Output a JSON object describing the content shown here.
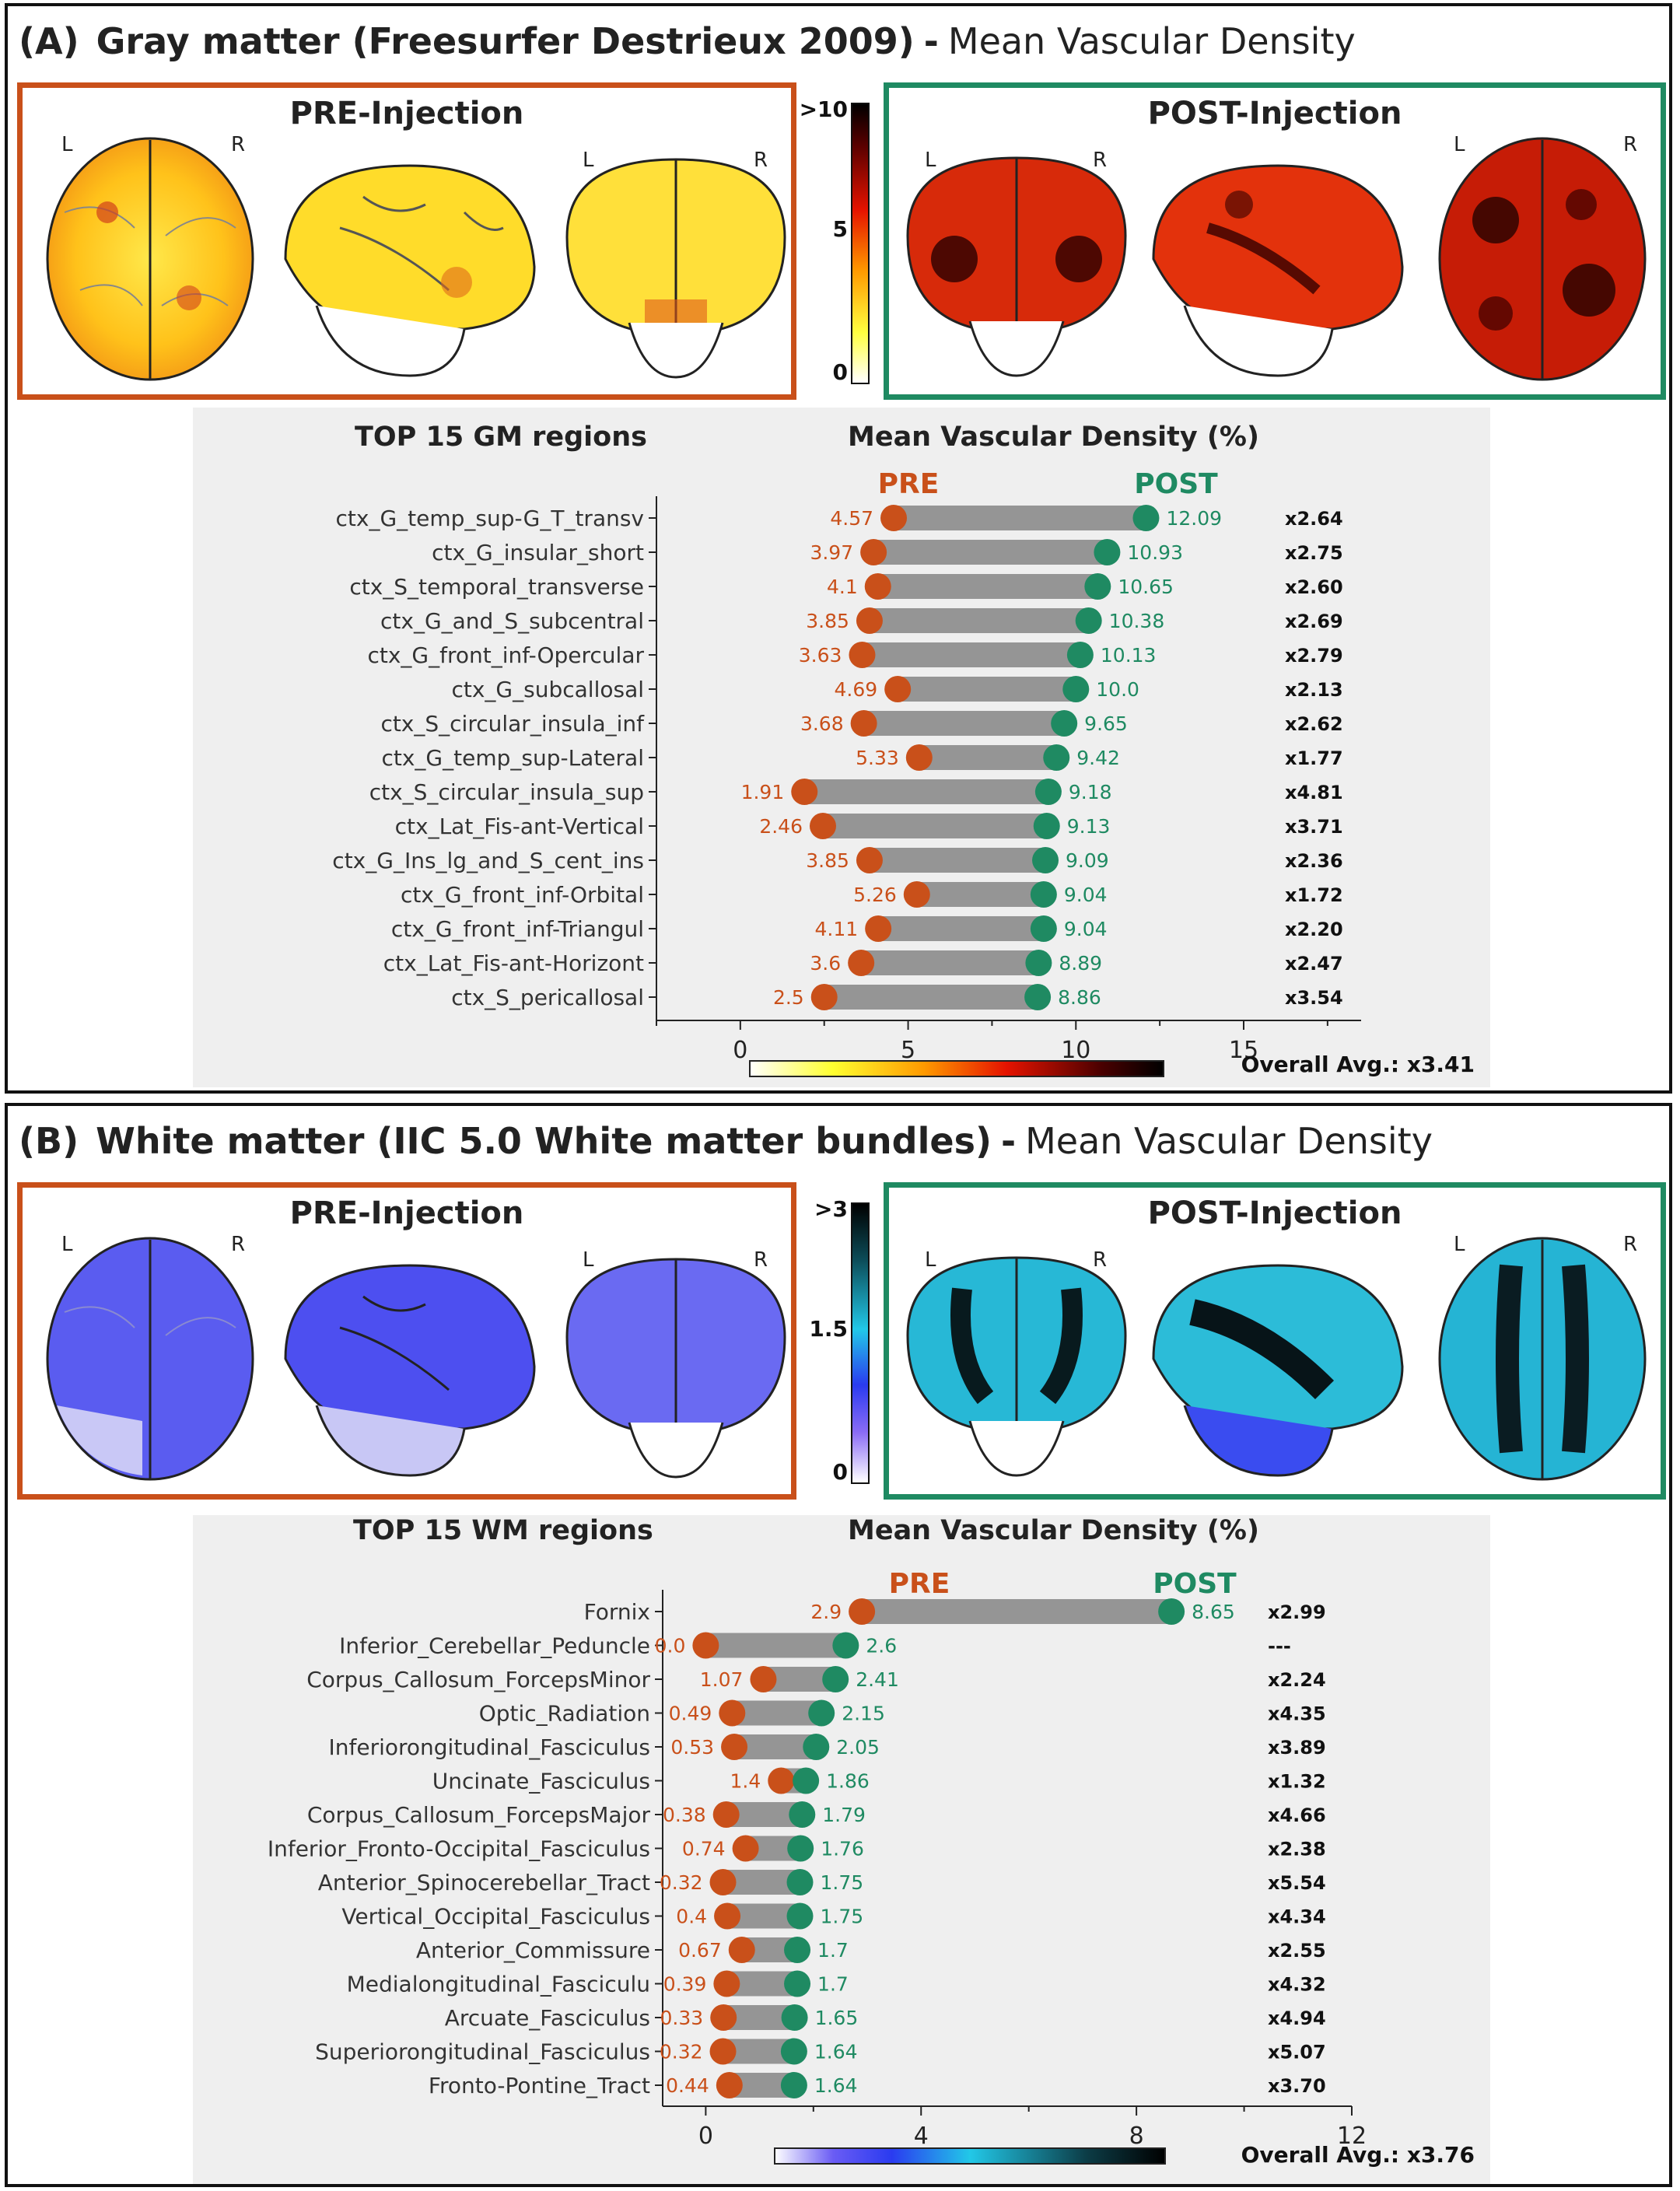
{
  "colors": {
    "pre": "#c9501a",
    "post": "#1f8a62",
    "bar": "#959595",
    "frame": "#c9501a"
  },
  "panelA": {
    "tag": "(A)",
    "title_bold": "Gray matter (Freesurfer Destrieux 2009)",
    "dash": "-",
    "title_rest": "Mean Vascular Density",
    "pre_label": "PRE-Injection",
    "post_label": "POST-Injection",
    "hemi_left": "L",
    "hemi_right": "R",
    "colorbar": {
      "max": ">10",
      "mid": "5",
      "min": "0",
      "colormap": "hot"
    },
    "regions_header": "TOP 15 GM regions",
    "measure_header": "Mean Vascular Density (%)",
    "overall": "Overall Avg.: x3.41"
  },
  "panelB": {
    "tag": "(B)",
    "title_bold": "White matter (IIC 5.0 White matter bundles)",
    "dash": "-",
    "title_rest": "Mean Vascular Density",
    "pre_label": "PRE-Injection",
    "post_label": "POST-Injection",
    "hemi_left": "L",
    "hemi_right": "R",
    "colorbar": {
      "max": ">3",
      "mid": "1.5",
      "min": "0",
      "colormap": "cool"
    },
    "regions_header": "TOP 15 WM regions",
    "measure_header": "Mean Vascular Density (%)",
    "overall": "Overall Avg.: x3.76"
  },
  "chart_data": [
    {
      "type": "dumbbell",
      "title": "TOP 15 GM regions — Mean Vascular Density (%)",
      "series_labels": [
        "PRE",
        "POST"
      ],
      "xlim": [
        -2.5,
        18.5
      ],
      "xticks": [
        0,
        5,
        10,
        15
      ],
      "categories": [
        "ctx_G_temp_sup-G_T_transv",
        "ctx_G_insular_short",
        "ctx_S_temporal_transverse",
        "ctx_G_and_S_subcentral",
        "ctx_G_front_inf-Opercular",
        "ctx_G_subcallosal",
        "ctx_S_circular_insula_inf",
        "ctx_G_temp_sup-Lateral",
        "ctx_S_circular_insula_sup",
        "ctx_Lat_Fis-ant-Vertical",
        "ctx_G_Ins_lg_and_S_cent_ins",
        "ctx_G_front_inf-Orbital",
        "ctx_G_front_inf-Triangul",
        "ctx_Lat_Fis-ant-Horizont",
        "ctx_S_pericallosal"
      ],
      "pre": [
        4.57,
        3.97,
        4.1,
        3.85,
        3.63,
        4.69,
        3.68,
        5.33,
        1.91,
        2.46,
        3.85,
        5.26,
        4.11,
        3.6,
        2.5
      ],
      "post": [
        12.09,
        10.93,
        10.65,
        10.38,
        10.13,
        10.0,
        9.65,
        9.42,
        9.18,
        9.13,
        9.09,
        9.04,
        9.04,
        8.89,
        8.86
      ],
      "pre_labels": [
        "4.57",
        "3.97",
        "4.1",
        "3.85",
        "3.63",
        "4.69",
        "3.68",
        "5.33",
        "1.91",
        "2.46",
        "3.85",
        "5.26",
        "4.11",
        "3.6",
        "2.5"
      ],
      "post_labels": [
        "12.09",
        "10.93",
        "10.65",
        "10.38",
        "10.13",
        "10.0",
        "9.65",
        "9.42",
        "9.18",
        "9.13",
        "9.09",
        "9.04",
        "9.04",
        "8.89",
        "8.86"
      ],
      "ratios": [
        "x2.64",
        "x2.75",
        "x2.60",
        "x2.69",
        "x2.79",
        "x2.13",
        "x2.62",
        "x1.77",
        "x4.81",
        "x3.71",
        "x2.36",
        "x1.72",
        "x2.20",
        "x2.47",
        "x3.54"
      ],
      "colormap": "hot"
    },
    {
      "type": "dumbbell",
      "title": "TOP 15 WM regions — Mean Vascular Density (%)",
      "series_labels": [
        "PRE",
        "POST"
      ],
      "xlim": [
        -0.8,
        12
      ],
      "xticks": [
        0,
        4,
        8,
        12
      ],
      "categories": [
        "Fornix",
        "Inferior_Cerebellar_Peduncle",
        "Corpus_Callosum_ForcepsMinor",
        "Optic_Radiation",
        "Inferiorongitudinal_Fasciculus",
        "Uncinate_Fasciculus",
        "Corpus_Callosum_ForcepsMajor",
        "Inferior_Fronto-Occipital_Fasciculus",
        "Anterior_Spinocerebellar_Tract",
        "Vertical_Occipital_Fasciculus",
        "Anterior_Commissure",
        "Medialongitudinal_Fasciculu",
        "Arcuate_Fasciculus",
        "Superiorongitudinal_Fasciculus",
        "Fronto-Pontine_Tract"
      ],
      "pre": [
        2.9,
        0.0,
        1.07,
        0.49,
        0.53,
        1.4,
        0.38,
        0.74,
        0.32,
        0.4,
        0.67,
        0.39,
        0.33,
        0.32,
        0.44
      ],
      "post": [
        8.65,
        2.6,
        2.41,
        2.15,
        2.05,
        1.86,
        1.79,
        1.76,
        1.75,
        1.75,
        1.7,
        1.7,
        1.65,
        1.64,
        1.64
      ],
      "pre_labels": [
        "2.9",
        "0.0",
        "1.07",
        "0.49",
        "0.53",
        "1.4",
        "0.38",
        "0.74",
        "0.32",
        "0.4",
        "0.67",
        "0.39",
        "0.33",
        "0.32",
        "0.44"
      ],
      "post_labels": [
        "8.65",
        "2.6",
        "2.41",
        "2.15",
        "2.05",
        "1.86",
        "1.79",
        "1.76",
        "1.75",
        "1.75",
        "1.7",
        "1.7",
        "1.65",
        "1.64",
        "1.64"
      ],
      "ratios": [
        "x2.99",
        "---",
        "x2.24",
        "x4.35",
        "x3.89",
        "x1.32",
        "x4.66",
        "x2.38",
        "x5.54",
        "x4.34",
        "x2.55",
        "x4.32",
        "x4.94",
        "x5.07",
        "x3.70"
      ],
      "colormap": "cool"
    }
  ]
}
